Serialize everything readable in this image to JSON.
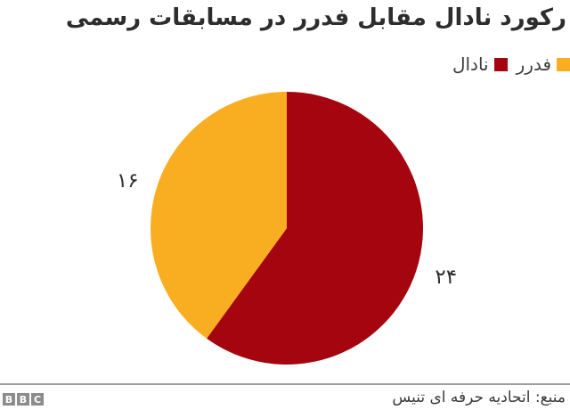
{
  "title": "رکورد نادال مقابل فدرر در مسابقات رسمی",
  "legend": {
    "items": [
      {
        "key": "federer",
        "label": "فدرر",
        "color": "#F9AE22"
      },
      {
        "key": "nadal",
        "label": "نادال",
        "color": "#A5050F"
      }
    ]
  },
  "chart_data": {
    "type": "pie",
    "title": "رکورد نادال مقابل فدرر در مسابقات رسمی",
    "direction": "clockwise",
    "start_angle_deg": 0,
    "legend_position": "top-right",
    "total": 40,
    "slices": [
      {
        "key": "nadal",
        "label": "نادال",
        "value": 24,
        "display_value": "۲۴",
        "color": "#A5050F"
      },
      {
        "key": "federer",
        "label": "فدرر",
        "value": 16,
        "display_value": "۱۶",
        "color": "#F9AE22"
      }
    ]
  },
  "footer": {
    "source": "منبع: اتحادیه حرفه ای تنیس",
    "logo_blocks": [
      "B",
      "B",
      "C"
    ]
  },
  "colors": {
    "nadal_red": "#A5050F",
    "federer_orange": "#F9AE22",
    "title_text": "#2d2d2d",
    "legend_text": "#3e3e3e",
    "label_text": "#2f2f2f",
    "divider_gray": "#9e9e9e",
    "logo_gray": "#8c8c8c",
    "background": "#ffffff"
  }
}
